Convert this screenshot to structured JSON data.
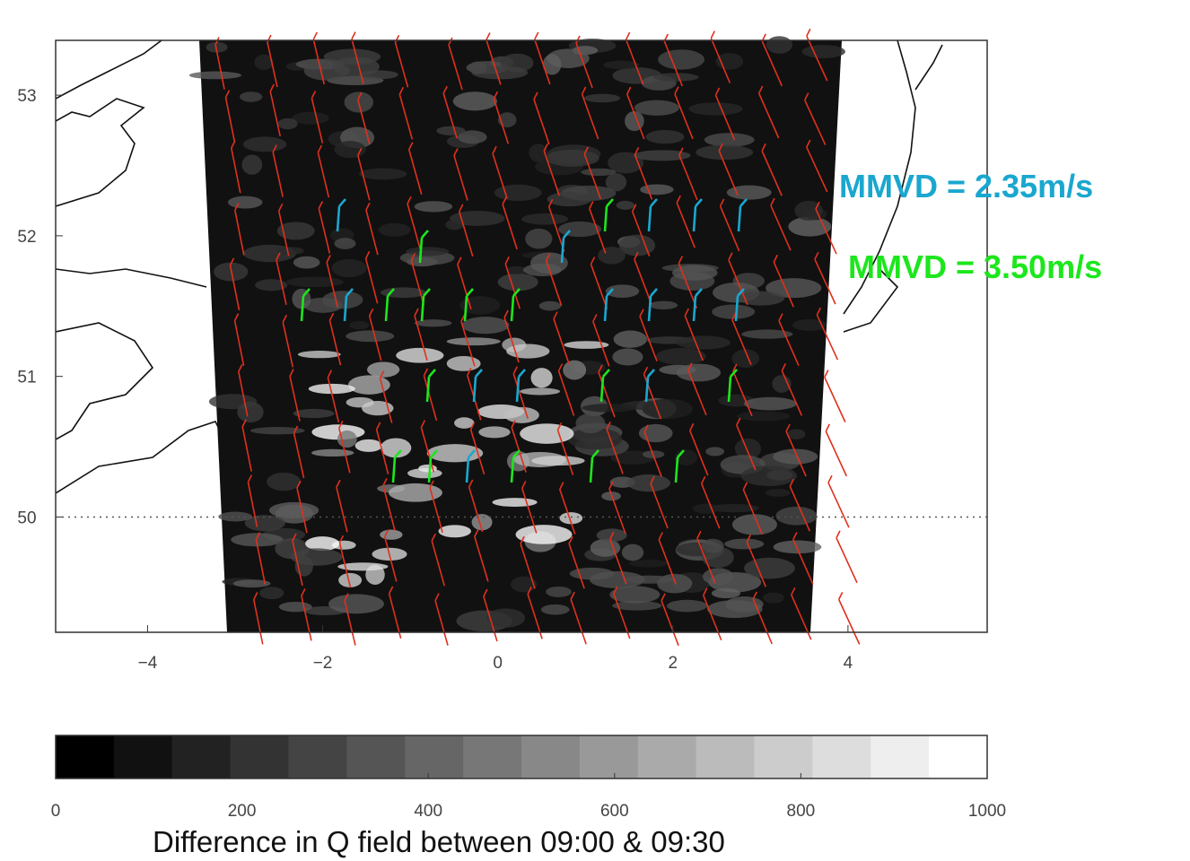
{
  "map": {
    "xlim": [
      -5.05,
      5.59
    ],
    "ylim": [
      49.18,
      53.39
    ],
    "xticks": [
      {
        "value": -4,
        "label": "−4"
      },
      {
        "value": -2,
        "label": "−2"
      },
      0,
      2,
      4
    ],
    "yticks": [
      50,
      51,
      52,
      53
    ],
    "reference_line": 50
  },
  "colorbar": {
    "lim": [
      0,
      1000
    ],
    "ticks": [
      0,
      200,
      400,
      600,
      800,
      1000
    ]
  },
  "annotations": [
    {
      "text": "MMVD = 2.35m/s",
      "color": "#1aa7cf"
    },
    {
      "text": "MMVD = 3.50m/s",
      "color": "#1de61d"
    }
  ],
  "caption": "Difference in Q field between 09:00 & 09:30"
}
